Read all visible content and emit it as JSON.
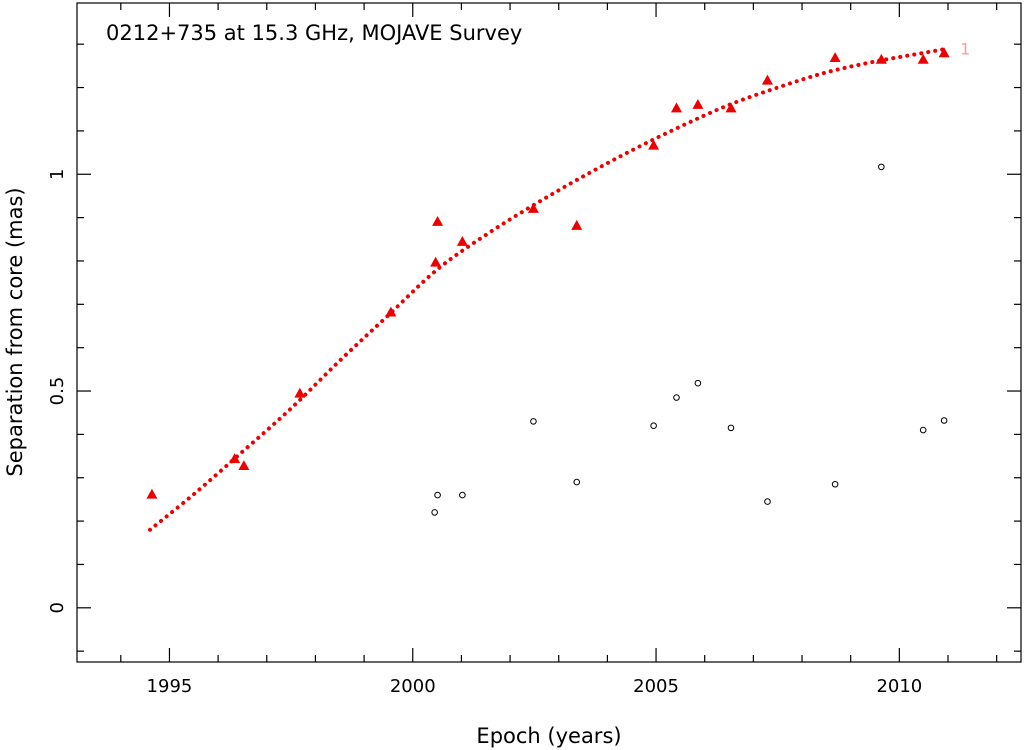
{
  "chart_data": {
    "type": "scatter",
    "title": "0212+735 at 15.3 GHz, MOJAVE Survey",
    "xlabel": "Epoch (years)",
    "ylabel": "Separation from core (mas)",
    "xlim": [
      1993.1,
      2012.5
    ],
    "ylim": [
      -0.125,
      1.395
    ],
    "xticks": [
      1995,
      2000,
      2005,
      2010
    ],
    "xtick_labels": [
      "1995",
      "2000",
      "2005",
      "2010"
    ],
    "yticks": [
      0,
      0.5,
      1
    ],
    "ytick_labels": [
      "0",
      "0.5",
      "1"
    ],
    "grid": false,
    "colors": {
      "component": "#ee0000",
      "other": "#000000",
      "fit": "#ee0000",
      "label": "#f4a0a0"
    },
    "series": [
      {
        "marker": "filled-triangle",
        "x": [
          1994.64,
          1996.34,
          1996.53,
          1997.68,
          1999.55,
          2000.47,
          2000.51,
          2001.02,
          2002.48,
          2003.37,
          2004.95,
          2005.42,
          2005.86,
          2006.54,
          2007.29,
          2008.68,
          2009.63,
          2010.49,
          2010.92
        ],
        "y": [
          0.262,
          0.344,
          0.328,
          0.495,
          0.682,
          0.797,
          0.891,
          0.845,
          0.921,
          0.882,
          1.067,
          1.153,
          1.161,
          1.153,
          1.217,
          1.269,
          1.265,
          1.265,
          1.28
        ]
      },
      {
        "marker": "open-circle",
        "x": [
          2000.45,
          2000.51,
          2001.02,
          2002.48,
          2003.37,
          2004.95,
          2005.42,
          2005.86,
          2006.54,
          2007.29,
          2008.68,
          2009.63,
          2010.49,
          2010.92
        ],
        "y": [
          0.22,
          0.26,
          0.26,
          0.43,
          0.29,
          0.42,
          0.485,
          0.518,
          0.415,
          0.245,
          0.285,
          1.017,
          0.41,
          0.432
        ]
      }
    ],
    "fit": {
      "style": "dotted",
      "x": [
        1994.6,
        1995.5,
        1996.5,
        1997.5,
        1998.5,
        1999.5,
        2000.5,
        2001.5,
        2002.5,
        2003.5,
        2004.5,
        2005.5,
        2006.5,
        2007.5,
        2008.5,
        2009.5,
        2010.5,
        2011.0
      ],
      "y": [
        0.18,
        0.262,
        0.36,
        0.46,
        0.57,
        0.675,
        0.78,
        0.86,
        0.93,
        0.995,
        1.055,
        1.11,
        1.16,
        1.2,
        1.235,
        1.26,
        1.28,
        1.29
      ]
    },
    "annotations": [
      {
        "text": "1",
        "x": 2011.25,
        "y": 1.29
      }
    ]
  }
}
